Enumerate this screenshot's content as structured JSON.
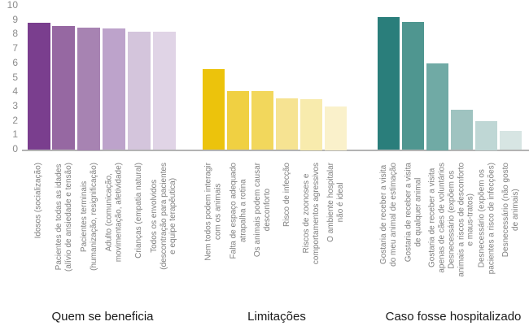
{
  "chart_data": {
    "type": "bar",
    "title": "",
    "xlabel": "",
    "ylabel": "",
    "ylim": [
      0,
      10
    ],
    "yticks": [
      0,
      1,
      2,
      3,
      4,
      5,
      6,
      7,
      8,
      9,
      10
    ],
    "grid": false,
    "legend": "none",
    "x_tick_label_rotation_deg": 90,
    "colors": {
      "axis_line": "#B3B3B3",
      "y_tick_label": "#8C8C8C",
      "bar_label": "#7F7F7F",
      "group_title": "#1A1A1A"
    },
    "groups": [
      {
        "title": "Quem se beneficia",
        "color_family": "purple",
        "bars": [
          {
            "label": "Idosos (socialização)",
            "label_lines": [
              "Idosos (socialização)"
            ],
            "value": 8.8,
            "color": "#7A3E8E"
          },
          {
            "label": "Pacientes de todas as idades (alívio de ansiedade e tensão)",
            "label_lines": [
              "Pacientes de todas as idades",
              "(alívio de ansiedade e tensão)"
            ],
            "value": 8.6,
            "color": "#9668A2"
          },
          {
            "label": "Pacientes terminais (humanização, resignificação)",
            "label_lines": [
              "Pacientes terminais",
              "(humanização, resignificação)"
            ],
            "value": 8.5,
            "color": "#A783B2"
          },
          {
            "label": "Adulto (comunicação, movimentação, afetividade)",
            "label_lines": [
              "Adulto (comunicação,",
              "movimentação, afetividade)"
            ],
            "value": 8.4,
            "color": "#BDA3CB"
          },
          {
            "label": "Crianças (empatia natural)",
            "label_lines": [
              "Crianças (empatia natural)"
            ],
            "value": 8.2,
            "color": "#D4C5DC"
          },
          {
            "label": "Todos os envolvidos (descontração para pacientes e equipe terapêutica)",
            "label_lines": [
              "Todos os envolvidos",
              "(descontração para pacientes",
              "e equipe terapêutica)"
            ],
            "value": 8.2,
            "color": "#E0D4E6"
          }
        ]
      },
      {
        "title": "Limitações",
        "color_family": "yellow",
        "bars": [
          {
            "label": "Nem todos podem interagir com os animais",
            "label_lines": [
              "Nem todos podem interagir",
              "com os animais"
            ],
            "value": 5.6,
            "color": "#ECC30C"
          },
          {
            "label": "Falta de espaço adequado atrapalha a rotina",
            "label_lines": [
              "Falta de espaço adequado",
              "atrapalha a rotina"
            ],
            "value": 4.1,
            "color": "#F0D042"
          },
          {
            "label": "Os animais podem causar desconforto",
            "label_lines": [
              "Os animais podem causar",
              "desconforto"
            ],
            "value": 4.1,
            "color": "#F2D75C"
          },
          {
            "label": "Risco de infecção",
            "label_lines": [
              "Risco de infecção"
            ],
            "value": 3.6,
            "color": "#F6E392"
          },
          {
            "label": "Riscos de zoonoses e comportamentos agressivos",
            "label_lines": [
              "Riscos de zoonoses e",
              "comportamentos agressivos"
            ],
            "value": 3.5,
            "color": "#F8EBAD"
          },
          {
            "label": "O ambiente hospitalar não é ideal",
            "label_lines": [
              "O ambiente hospitalar",
              "não é ideal"
            ],
            "value": 3.0,
            "color": "#FAF1CB"
          }
        ]
      },
      {
        "title": "Caso fosse hospitalizado",
        "color_family": "teal",
        "bars": [
          {
            "label": "Gostaria de receber a visita do meu animal de estimação",
            "label_lines": [
              "Gostaria de receber a visita",
              "do meu animal de estimação"
            ],
            "value": 9.2,
            "color": "#2A7E7B"
          },
          {
            "label": "Gostaria de receber a visita de qualquer animal",
            "label_lines": [
              "Gostaria de receber a visita",
              "de qualquer animal"
            ],
            "value": 8.9,
            "color": "#4F9690"
          },
          {
            "label": "Gostaria de receber a visita apenas de cães de voluntários",
            "label_lines": [
              "Gostaria de receber a visita",
              "apenas de cães de voluntários"
            ],
            "value": 6.0,
            "color": "#70AAA5"
          },
          {
            "label": "Desnecessário (expõem os animais a riscos de desconforto e maus-tratos)",
            "label_lines": [
              "Desnecessário (expõem os",
              "animais a riscos de desconforto",
              "e maus-tratos)"
            ],
            "value": 2.8,
            "color": "#9FC3C0"
          },
          {
            "label": "Desnecessário (expõem os pacientes a risco de infecções)",
            "label_lines": [
              "Desnecessário (expõem os",
              "pacientes a risco de infecções)"
            ],
            "value": 2.0,
            "color": "#BFD7D5"
          },
          {
            "label": "Desnecessário (não gosto de animais)",
            "label_lines": [
              "Desnecessário (não gosto",
              "de animais)"
            ],
            "value": 1.3,
            "color": "#D7E5E3"
          }
        ]
      }
    ]
  }
}
